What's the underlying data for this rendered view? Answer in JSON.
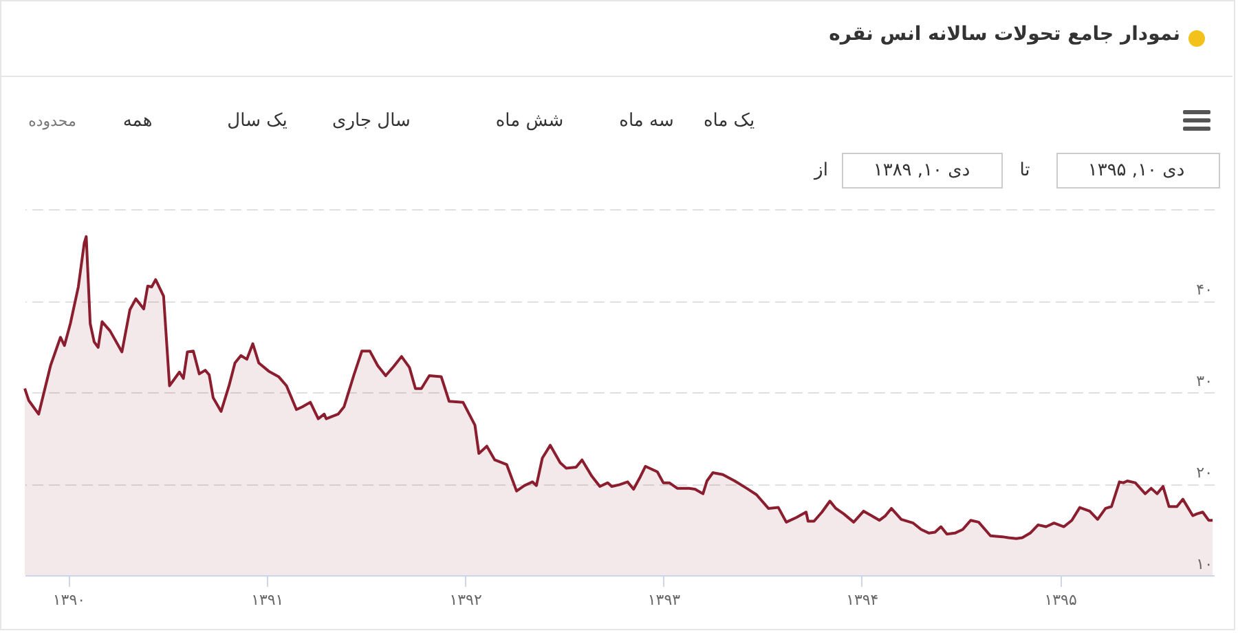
{
  "chart_data": {
    "type": "area",
    "title": "نمودار جامع تحولات سالانه انس نقره",
    "annotations": [
      "یک ماه",
      "سه ماه",
      "شش ماه",
      "سال جاری",
      "یک سال",
      "همه",
      "محدوده",
      "دی ۱۰, ۱۳۹۵",
      "تا",
      "دی ۱۰, ۱۳۸۹",
      "از"
    ],
    "xlim": [
      1389.78,
      1395.78
    ],
    "xticks": [
      {
        "value": 1390,
        "label": "۱۳۹۰"
      },
      {
        "value": 1391,
        "label": "۱۳۹۱"
      },
      {
        "value": 1392,
        "label": "۱۳۹۲"
      },
      {
        "value": 1393,
        "label": "۱۳۹۳"
      },
      {
        "value": 1394,
        "label": "۱۳۹۴"
      },
      {
        "value": 1395,
        "label": "۱۳۹۵"
      }
    ],
    "ylim": [
      10,
      50
    ],
    "yticks": [
      {
        "value": 10,
        "label": "۱۰"
      },
      {
        "value": 20,
        "label": "۲۰"
      },
      {
        "value": 30,
        "label": "۳۰"
      },
      {
        "value": 40,
        "label": "۴۰"
      },
      {
        "value": 50,
        "label": null
      }
    ],
    "grid": "y",
    "series": [
      {
        "color": "#8b1e2e",
        "x": [
          1389.78,
          1389.8,
          1389.85,
          1389.91,
          1389.96,
          1389.98,
          1390.01,
          1390.05,
          1390.08,
          1390.09,
          1390.11,
          1390.13,
          1390.15,
          1390.17,
          1390.21,
          1390.27,
          1390.31,
          1390.34,
          1390.38,
          1390.4,
          1390.42,
          1390.44,
          1390.48,
          1390.51,
          1390.56,
          1390.58,
          1390.6,
          1390.63,
          1390.66,
          1390.69,
          1390.71,
          1390.73,
          1390.77,
          1390.81,
          1390.84,
          1390.87,
          1390.9,
          1390.93,
          1390.96,
          1391.01,
          1391.06,
          1391.1,
          1391.15,
          1391.18,
          1391.22,
          1391.26,
          1391.29,
          1391.3,
          1391.36,
          1391.39,
          1391.44,
          1391.48,
          1391.52,
          1391.56,
          1391.6,
          1391.64,
          1391.68,
          1391.72,
          1391.75,
          1391.78,
          1391.82,
          1391.88,
          1391.92,
          1391.99,
          1392.05,
          1392.07,
          1392.11,
          1392.15,
          1392.21,
          1392.26,
          1392.3,
          1392.34,
          1392.36,
          1392.39,
          1392.43,
          1392.48,
          1392.51,
          1392.56,
          1392.59,
          1392.64,
          1392.68,
          1392.72,
          1392.74,
          1392.78,
          1392.82,
          1392.85,
          1392.88,
          1392.91,
          1392.97,
          1393.0,
          1393.03,
          1393.07,
          1393.13,
          1393.16,
          1393.2,
          1393.22,
          1393.25,
          1393.3,
          1393.36,
          1393.42,
          1393.47,
          1393.53,
          1393.58,
          1393.62,
          1393.67,
          1393.72,
          1393.73,
          1393.76,
          1393.8,
          1393.84,
          1393.87,
          1393.91,
          1393.96,
          1394.01,
          1394.05,
          1394.09,
          1394.12,
          1394.15,
          1394.2,
          1394.26,
          1394.3,
          1394.34,
          1394.37,
          1394.4,
          1394.43,
          1394.47,
          1394.51,
          1394.55,
          1394.59,
          1394.65,
          1394.71,
          1394.74,
          1394.78,
          1394.81,
          1394.85,
          1394.89,
          1394.93,
          1394.97,
          1395.02,
          1395.06,
          1395.1,
          1395.15,
          1395.19,
          1395.23,
          1395.26,
          1395.3,
          1395.32,
          1395.34,
          1395.38,
          1395.43,
          1395.46,
          1395.49,
          1395.52,
          1395.55,
          1395.59,
          1395.62,
          1395.67,
          1395.69,
          1395.72,
          1395.75,
          1395.77
        ],
        "values": [
          30.4,
          29.1,
          27.6,
          32.9,
          36.0,
          35.1,
          37.5,
          41.5,
          46.3,
          47.0,
          37.5,
          35.5,
          34.9,
          37.7,
          36.7,
          34.4,
          39.0,
          40.2,
          39.1,
          41.6,
          41.5,
          42.3,
          40.5,
          30.7,
          32.2,
          31.5,
          34.4,
          34.5,
          32.0,
          32.4,
          31.9,
          29.4,
          27.9,
          30.7,
          33.2,
          34.0,
          33.6,
          35.3,
          33.2,
          32.3,
          31.7,
          30.7,
          28.1,
          28.4,
          28.9,
          27.1,
          27.6,
          27.1,
          27.6,
          28.4,
          31.9,
          34.5,
          34.5,
          32.9,
          31.8,
          32.8,
          33.9,
          32.7,
          30.4,
          30.4,
          31.8,
          31.7,
          29.0,
          28.9,
          26.4,
          23.3,
          24.1,
          22.6,
          22.1,
          19.2,
          19.8,
          20.2,
          19.8,
          22.8,
          24.2,
          22.3,
          21.7,
          21.8,
          22.6,
          20.8,
          19.7,
          20.1,
          19.7,
          19.9,
          20.2,
          19.4,
          20.6,
          21.9,
          21.3,
          20.1,
          20.1,
          19.5,
          19.5,
          19.4,
          18.9,
          20.3,
          21.2,
          21.0,
          20.3,
          19.5,
          18.8,
          17.3,
          17.4,
          15.8,
          16.3,
          16.9,
          15.9,
          15.9,
          16.9,
          18.1,
          17.3,
          16.7,
          15.8,
          17.0,
          16.5,
          16.0,
          16.5,
          17.3,
          16.1,
          15.7,
          15.0,
          14.6,
          14.7,
          15.3,
          14.5,
          14.6,
          15.0,
          16.0,
          15.8,
          14.3,
          14.2,
          14.1,
          14.0,
          14.1,
          14.6,
          15.5,
          15.3,
          15.7,
          15.3,
          16.0,
          17.4,
          17.0,
          16.1,
          17.3,
          17.5,
          20.2,
          20.1,
          20.3,
          20.1,
          18.9,
          19.5,
          18.9,
          19.7,
          17.5,
          17.5,
          18.3,
          16.5,
          16.7,
          16.9,
          16.0,
          16.0
        ]
      }
    ]
  }
}
